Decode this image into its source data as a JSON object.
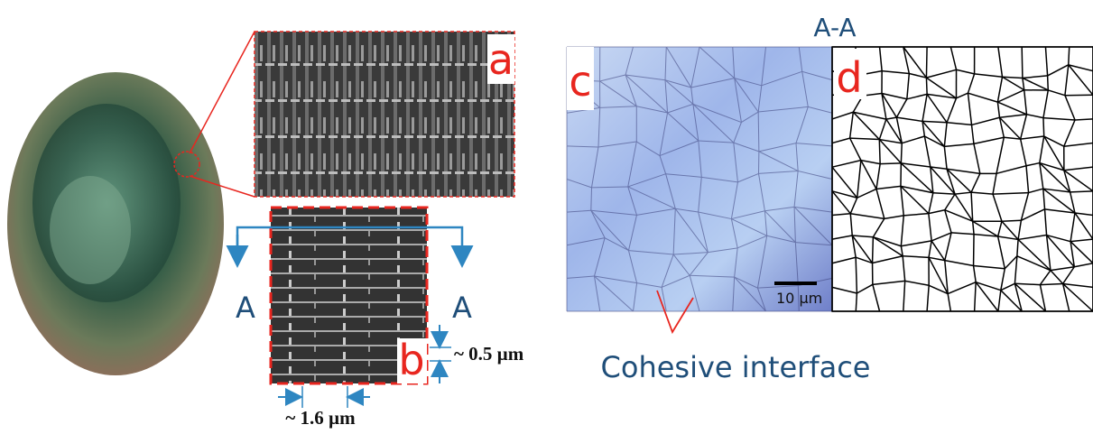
{
  "panels": [
    {
      "label": "a"
    },
    {
      "label": "b"
    },
    {
      "label": "c"
    },
    {
      "label": "d"
    }
  ],
  "section_label": "A-A",
  "section_marks": [
    "A",
    "A"
  ],
  "dimensions": [
    "~ 0.5 µm",
    "~ 1.6 µm"
  ],
  "scale_bar": "10 µm",
  "annotation": "Cohesive interface"
}
